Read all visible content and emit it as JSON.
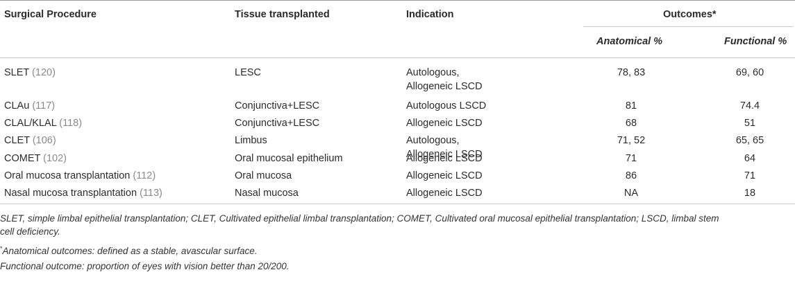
{
  "header": {
    "col1": "Surgical Procedure",
    "col2": "Tissue transplanted",
    "col3": "Indication",
    "outcomes": "Outcomes*",
    "anatomical": "Anatomical %",
    "functional": "Functional %"
  },
  "rows": [
    {
      "procedure": "SLET",
      "ref": "(120)",
      "tissue": "LESC",
      "indication_1": "Autologous,",
      "indication_2": "Allogeneic LSCD",
      "anatomical": "78, 83",
      "functional": "69, 60"
    },
    {
      "procedure": "CLAu",
      "ref": "(117)",
      "tissue": "Conjunctiva+LESC",
      "indication_1": "Autologous LSCD",
      "indication_2": "",
      "anatomical": "81",
      "functional": "74.4"
    },
    {
      "procedure": "CLAL/KLAL",
      "ref": "(118)",
      "tissue": "Conjunctiva+LESC",
      "indication_1": "Allogeneic LSCD",
      "indication_2": "",
      "anatomical": "68",
      "functional": "51"
    },
    {
      "procedure": "CLET",
      "ref": "(106)",
      "tissue": "Limbus",
      "indication_1": "Autologous,",
      "indication_2": "Allogeneic LSCD",
      "anatomical": "71, 52",
      "functional": "65, 65"
    },
    {
      "procedure": "COMET",
      "ref": "(102)",
      "tissue": "Oral mucosal epithelium",
      "indication_1": "Allogeneic LSCD",
      "indication_2": "",
      "anatomical": "71",
      "functional": "64"
    },
    {
      "procedure": "Oral mucosa transplantation",
      "ref": "(112)",
      "tissue": "Oral mucosa",
      "indication_1": "Allogeneic LSCD",
      "indication_2": "",
      "anatomical": "86",
      "functional": "71"
    },
    {
      "procedure": "Nasal mucosa transplantation",
      "ref": "(113)",
      "tissue": "Nasal mucosa",
      "indication_1": "Allogeneic LSCD",
      "indication_2": "",
      "anatomical": "NA",
      "functional": "18"
    }
  ],
  "footnotes": {
    "abbrev_line1": "SLET, simple limbal epithelial transplantation; CLET, Cultivated epithelial limbal transplantation; COMET, Cultivated oral mucosal epithelial transplantation; LSCD, limbal stem",
    "abbrev_line2": "cell deficiency.",
    "star_mark": "*",
    "anatomical_note": "Anatomical outcomes: defined as a stable, avascular surface.",
    "functional_note": "Functional outcome: proportion of eyes with vision better than 20/200."
  }
}
